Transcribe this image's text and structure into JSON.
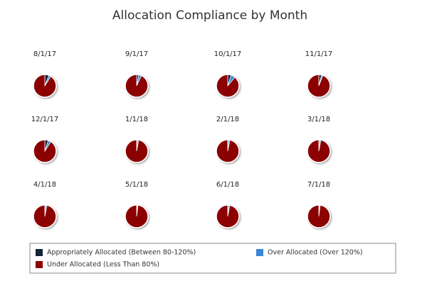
{
  "chart_data": {
    "type": "pie",
    "title": "Allocation Compliance by Month",
    "categories": [
      "8/1/17",
      "9/1/17",
      "10/1/17",
      "11/1/17",
      "12/1/17",
      "1/1/18",
      "2/1/18",
      "3/1/18",
      "4/1/18",
      "5/1/18",
      "6/1/18",
      "7/1/18"
    ],
    "series": [
      {
        "name": "Appropriately Allocated (Between 80-120%)",
        "color": "#13243b",
        "values": [
          6,
          3,
          5,
          4,
          5,
          1,
          1,
          1,
          1,
          1,
          1,
          1
        ]
      },
      {
        "name": "Over Allocated (Over 120%)",
        "color": "#3a87d6",
        "values": [
          3,
          4,
          6,
          2,
          4,
          2,
          2,
          2,
          2,
          1,
          2,
          1
        ]
      },
      {
        "name": "Under Allocated (Less Than 80%)",
        "color": "#8b0000",
        "values": [
          91,
          93,
          89,
          94,
          91,
          97,
          97,
          97,
          97,
          98,
          97,
          98
        ]
      }
    ]
  }
}
